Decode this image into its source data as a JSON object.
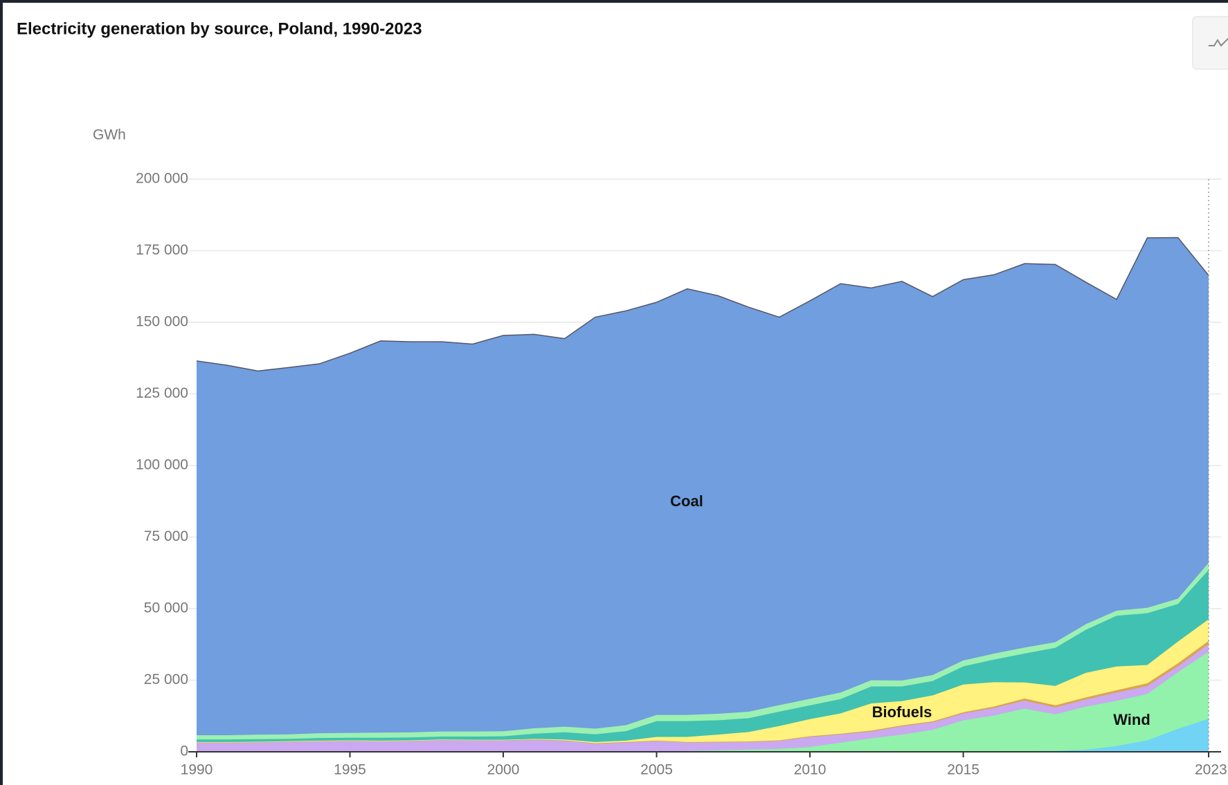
{
  "chart_data": {
    "type": "stacked-area",
    "title": "Electricity generation by source, Poland, 1990-2023",
    "y_label": "GWh",
    "x": [
      1990,
      1991,
      1992,
      1993,
      1994,
      1995,
      1996,
      1997,
      1998,
      1999,
      2000,
      2001,
      2002,
      2003,
      2004,
      2005,
      2006,
      2007,
      2008,
      2009,
      2010,
      2011,
      2012,
      2013,
      2014,
      2015,
      2016,
      2017,
      2018,
      2019,
      2020,
      2021,
      2022,
      2023
    ],
    "xlim": [
      1990,
      2023
    ],
    "xticks": [
      1990,
      1995,
      2000,
      2005,
      2010,
      2015,
      2023
    ],
    "ylim": [
      0,
      200000
    ],
    "yticks": [
      0,
      {
        "value": 25000,
        "label": "25 000"
      },
      {
        "value": 50000,
        "label": "50 000"
      },
      {
        "value": 75000,
        "label": "75 000"
      },
      {
        "value": 100000,
        "label": "100 000"
      },
      {
        "value": 125000,
        "label": "125 000"
      },
      {
        "value": 150000,
        "label": "150 000"
      },
      {
        "value": 175000,
        "label": "175 000"
      },
      {
        "value": 200000,
        "label": "200 000"
      }
    ],
    "grid": true,
    "series": [
      {
        "color": "#6dd3f5",
        "values": [
          0,
          0,
          0,
          0,
          0,
          0,
          0,
          0,
          0,
          0,
          0,
          0,
          0,
          0,
          0,
          0,
          0,
          0,
          0,
          0,
          0,
          0,
          0,
          0,
          0,
          100,
          100,
          200,
          300,
          700,
          2000,
          4000,
          8000,
          11500
        ]
      },
      {
        "name": "Wind",
        "color": "#8ef2a8",
        "values": [
          0,
          0,
          0,
          0,
          0,
          0,
          0,
          0,
          0,
          0,
          0,
          0,
          0,
          0,
          100,
          100,
          300,
          500,
          800,
          1000,
          1700,
          3200,
          4700,
          6000,
          7700,
          10900,
          12600,
          14900,
          12800,
          15100,
          15800,
          16200,
          19800,
          23500
        ]
      },
      {
        "color": "#c9a6f0",
        "values": [
          3300,
          3300,
          3400,
          3600,
          3800,
          3900,
          3800,
          3900,
          4200,
          4100,
          4100,
          4300,
          4000,
          3000,
          3200,
          3700,
          3000,
          2900,
          2700,
          2900,
          3500,
          2900,
          2400,
          2900,
          2600,
          2400,
          2600,
          2800,
          2400,
          2500,
          2900,
          2800,
          2100,
          2600
        ]
      },
      {
        "color": "#d9a24a",
        "values": [
          0,
          0,
          0,
          0,
          0,
          0,
          0,
          0,
          0,
          0,
          0,
          0,
          0,
          0,
          100,
          100,
          100,
          100,
          100,
          100,
          200,
          200,
          300,
          300,
          300,
          400,
          500,
          700,
          700,
          700,
          800,
          900,
          1000,
          1100
        ]
      },
      {
        "name": "Biofuels",
        "color": "#fff27a",
        "values": [
          100,
          100,
          100,
          100,
          100,
          100,
          100,
          100,
          100,
          100,
          100,
          200,
          300,
          400,
          500,
          1300,
          1800,
          2500,
          3300,
          5000,
          6000,
          7100,
          9500,
          8500,
          9100,
          9700,
          8500,
          5600,
          6800,
          8600,
          8300,
          6400,
          7600,
          7600
        ]
      },
      {
        "color": "#3bbfb0",
        "values": [
          900,
          900,
          900,
          800,
          900,
          900,
          1000,
          1000,
          1000,
          1100,
          1200,
          1800,
          2500,
          2700,
          3300,
          5500,
          5500,
          5000,
          4800,
          5000,
          4800,
          5000,
          5900,
          5100,
          5000,
          6300,
          7900,
          10100,
          13300,
          15000,
          17700,
          18100,
          13100,
          17200
        ]
      },
      {
        "color": "#9af0b0",
        "values": [
          1500,
          1500,
          1600,
          1600,
          1700,
          1700,
          1800,
          1800,
          1800,
          1800,
          1800,
          1900,
          2000,
          2000,
          2100,
          2200,
          2200,
          2300,
          2300,
          2300,
          2300,
          2300,
          2200,
          2100,
          2100,
          2100,
          2100,
          2100,
          2000,
          2000,
          1800,
          1900,
          1900,
          2500
        ]
      },
      {
        "name": "Coal",
        "color": "#6b9bde",
        "values": [
          130700,
          129200,
          127000,
          128100,
          129000,
          132600,
          136800,
          136400,
          136100,
          135300,
          138200,
          137600,
          135500,
          143700,
          144700,
          144100,
          148800,
          146000,
          141300,
          135500,
          139000,
          142800,
          137000,
          139400,
          132200,
          133000,
          132300,
          134100,
          131900,
          119400,
          108700,
          129200,
          126100,
          100400
        ]
      }
    ]
  }
}
